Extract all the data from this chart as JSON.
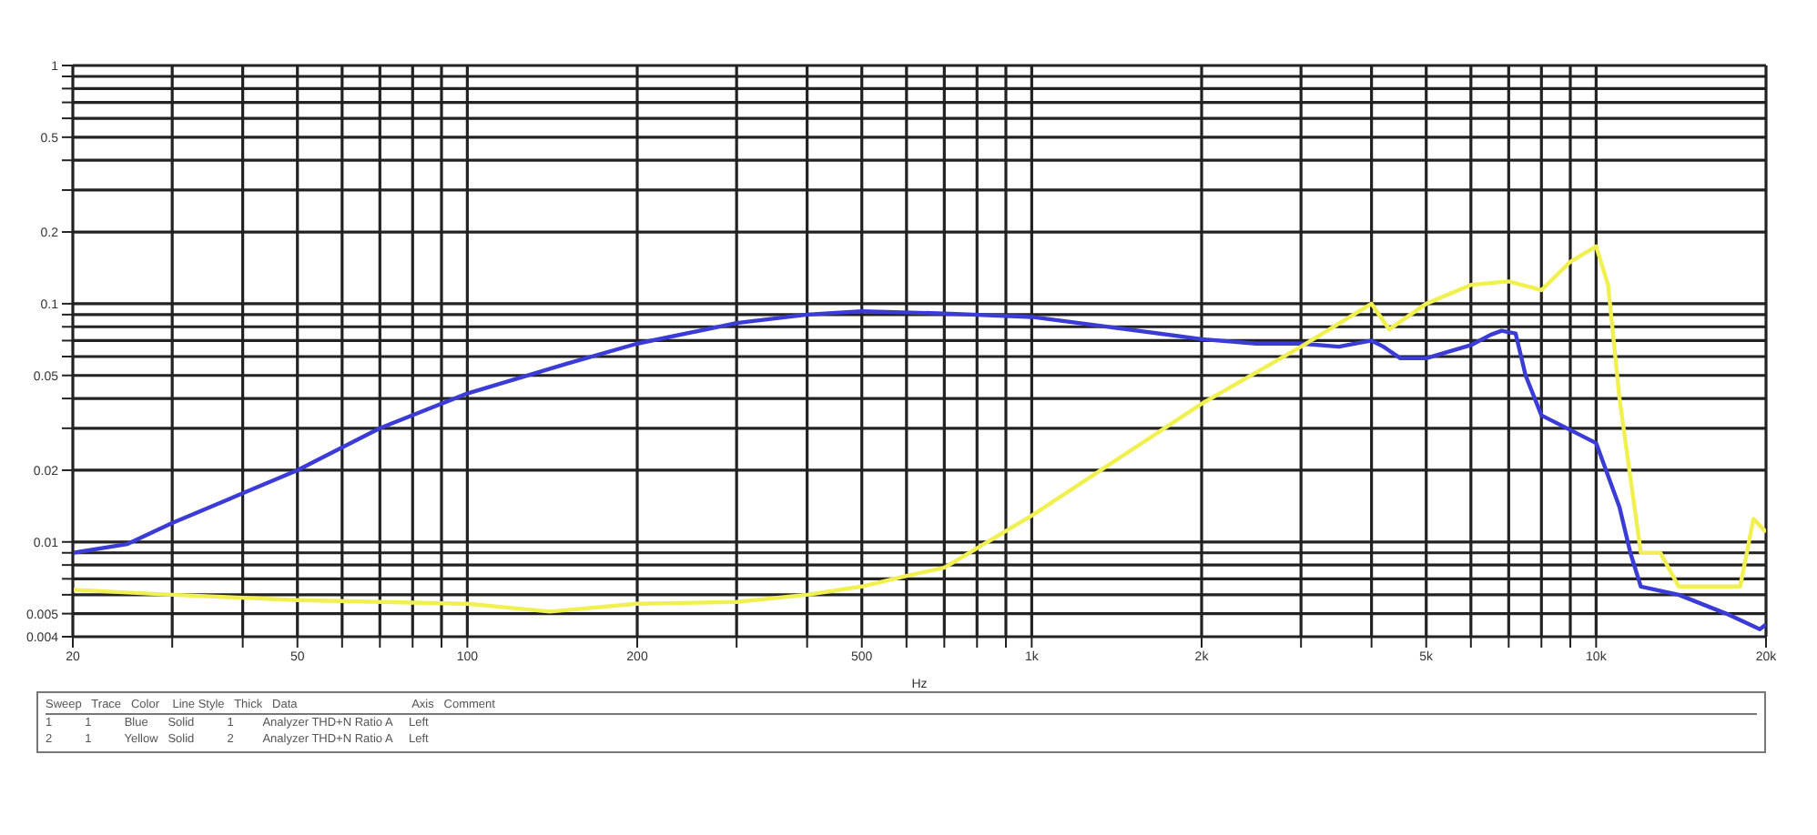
{
  "chart_data": {
    "type": "line",
    "xlabel": "Hz",
    "log": "xy",
    "grid": true,
    "line_style": "solid",
    "marker": "none",
    "xlim": [
      20,
      20000
    ],
    "xticks": [
      20,
      {
        "value": 30,
        "label": null
      },
      {
        "value": 40,
        "label": null
      },
      50,
      {
        "value": 60,
        "label": null
      },
      {
        "value": 70,
        "label": null
      },
      {
        "value": 80,
        "label": null
      },
      {
        "value": 90,
        "label": null
      },
      100,
      200,
      {
        "value": 300,
        "label": null
      },
      {
        "value": 400,
        "label": null
      },
      500,
      {
        "value": 600,
        "label": null
      },
      {
        "value": 700,
        "label": null
      },
      {
        "value": 800,
        "label": null
      },
      {
        "value": 900,
        "label": null
      },
      {
        "value": 1000,
        "label": "1k"
      },
      {
        "value": 2000,
        "label": "2k"
      },
      {
        "value": 3000,
        "label": null
      },
      {
        "value": 4000,
        "label": null
      },
      {
        "value": 5000,
        "label": "5k"
      },
      {
        "value": 6000,
        "label": null
      },
      {
        "value": 7000,
        "label": null
      },
      {
        "value": 8000,
        "label": null
      },
      {
        "value": 9000,
        "label": null
      },
      {
        "value": 10000,
        "label": "10k"
      },
      {
        "value": 20000,
        "label": "20k"
      }
    ],
    "ylim": [
      0.004,
      1
    ],
    "yticks": [
      0.004,
      0.005,
      {
        "value": 0.006,
        "label": null
      },
      {
        "value": 0.007,
        "label": null
      },
      {
        "value": 0.008,
        "label": null
      },
      {
        "value": 0.009,
        "label": null
      },
      0.01,
      0.02,
      {
        "value": 0.03,
        "label": null
      },
      {
        "value": 0.04,
        "label": null
      },
      0.05,
      {
        "value": 0.06,
        "label": null
      },
      {
        "value": 0.07,
        "label": null
      },
      {
        "value": 0.08,
        "label": null
      },
      {
        "value": 0.09,
        "label": null
      },
      0.1,
      0.2,
      {
        "value": 0.3,
        "label": null
      },
      {
        "value": 0.4,
        "label": null
      },
      0.5,
      {
        "value": 0.6,
        "label": null
      },
      {
        "value": 0.7,
        "label": null
      },
      {
        "value": 0.8,
        "label": null
      },
      {
        "value": 0.9,
        "label": null
      },
      1
    ],
    "series": [
      {
        "color": "#3b3bd6",
        "x": [
          20,
          25,
          30,
          40,
          50,
          70,
          100,
          150,
          200,
          300,
          400,
          500,
          700,
          1000,
          2000,
          2500,
          3000,
          3500,
          4000,
          4200,
          4500,
          5000,
          6000,
          6500,
          6800,
          7200,
          7500,
          8000,
          10000,
          11000,
          11500,
          12000,
          14000,
          17000,
          19500,
          20000
        ],
        "values": [
          0.009,
          0.0098,
          0.012,
          0.016,
          0.02,
          0.03,
          0.042,
          0.056,
          0.068,
          0.083,
          0.09,
          0.093,
          0.091,
          0.088,
          0.071,
          0.068,
          0.068,
          0.066,
          0.07,
          0.066,
          0.059,
          0.059,
          0.067,
          0.074,
          0.077,
          0.075,
          0.05,
          0.034,
          0.026,
          0.014,
          0.009,
          0.0065,
          0.006,
          0.005,
          0.0043,
          0.0045
        ]
      },
      {
        "color": "#f0f050",
        "x": [
          20,
          30,
          50,
          100,
          140,
          200,
          300,
          400,
          500,
          600,
          700,
          1000,
          2000,
          3000,
          4000,
          4300,
          5000,
          6000,
          7000,
          8000,
          9000,
          10000,
          10500,
          11000,
          12000,
          13000,
          14000,
          18000,
          19000,
          20000
        ],
        "values": [
          0.0063,
          0.006,
          0.0057,
          0.0055,
          0.0051,
          0.0055,
          0.0056,
          0.006,
          0.0065,
          0.0072,
          0.0078,
          0.0129,
          0.038,
          0.066,
          0.1,
          0.078,
          0.1,
          0.12,
          0.124,
          0.114,
          0.15,
          0.174,
          0.12,
          0.04,
          0.009,
          0.009,
          0.0065,
          0.0065,
          0.0125,
          0.011
        ]
      }
    ],
    "annotations": [
      "Sweep   Trace   Color    Line Style   Thick   Data                                   Axis   Comment",
      "1          1          Blue      Solid          1         Analyzer THD+N Ratio A     Left",
      "2          1          Yellow   Solid          2         Analyzer THD+N Ratio A     Left"
    ]
  }
}
